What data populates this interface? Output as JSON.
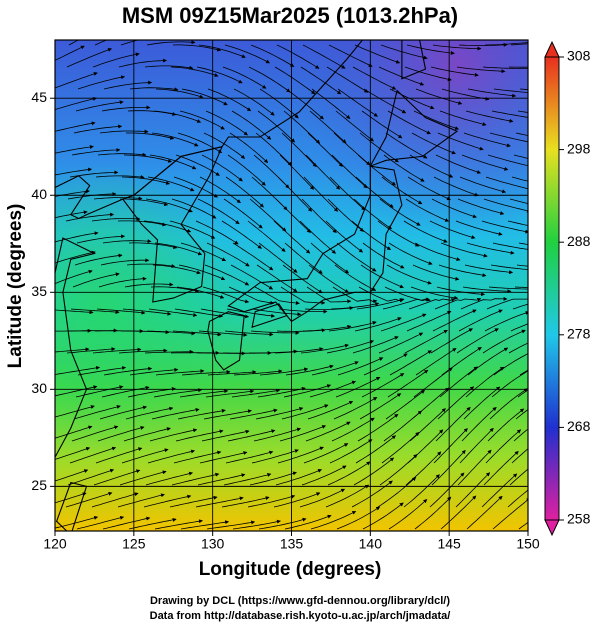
{
  "chart_data": {
    "type": "map",
    "title": "MSM 09Z15Mar2025 (1013.2hPa)",
    "xlabel": "Longitude (degrees)",
    "ylabel": "Latitude  (degrees)",
    "xlim": [
      120,
      150
    ],
    "xticks": [
      120,
      125,
      130,
      135,
      140,
      145,
      150
    ],
    "ylim": [
      22.7,
      48.0
    ],
    "yticks": [
      25,
      30,
      35,
      40,
      45
    ],
    "grid": true,
    "colorbar": {
      "lim": [
        258,
        308
      ],
      "ticks": [
        258,
        268,
        278,
        288,
        298,
        308
      ]
    }
  },
  "credits": [
    "Drawing by DCL (https://www.gfd-dennou.org/library/dcl/)",
    "Data from http://database.rish.kyoto-u.ac.jp/arch/jmadata/"
  ]
}
